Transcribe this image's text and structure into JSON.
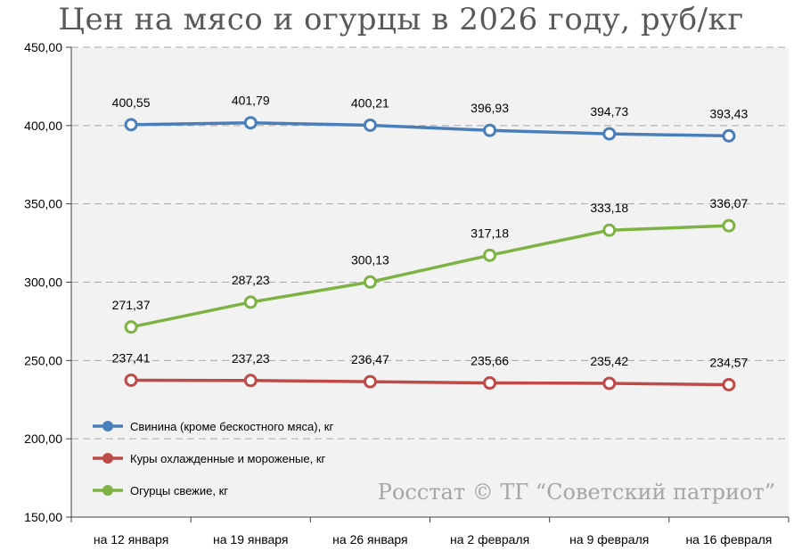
{
  "title": "Цен на мясо и огурцы в 2026 году, руб/кг",
  "watermark": "Росстат © ТГ “Советский патриот”",
  "chart_data": {
    "type": "line",
    "title": "Цен на мясо и огурцы в 2026 году, руб/кг",
    "categories": [
      "на 12 января",
      "на 19 января",
      "на 26 января",
      "на 2 февраля",
      "на 9 февраля",
      "на 16 февраля"
    ],
    "ylim": [
      150,
      450
    ],
    "yticks": [
      "150,00",
      "200,00",
      "250,00",
      "300,00",
      "350,00",
      "400,00",
      "450,00"
    ],
    "grid": true,
    "legend_position": "bottom-left",
    "series": [
      {
        "name": "Свинина (кроме бескостного мяса), кг",
        "color": "#4a7ebb",
        "values": [
          400.55,
          401.79,
          400.21,
          396.93,
          394.73,
          393.43
        ],
        "labels": [
          "400,55",
          "401,79",
          "400,21",
          "396,93",
          "394,73",
          "393,43"
        ]
      },
      {
        "name": "Куры охлажденные и мороженые, кг",
        "color": "#be4b48",
        "values": [
          237.41,
          237.23,
          236.47,
          235.66,
          235.42,
          234.57
        ],
        "labels": [
          "237,41",
          "237,23",
          "236,47",
          "235,66",
          "235,42",
          "234,57"
        ]
      },
      {
        "name": "Огурцы свежие, кг",
        "color": "#7eb344",
        "values": [
          271.37,
          287.23,
          300.13,
          317.18,
          333.18,
          336.07
        ],
        "labels": [
          "271,37",
          "287,23",
          "300,13",
          "317,18",
          "333,18",
          "336,07"
        ]
      }
    ]
  }
}
